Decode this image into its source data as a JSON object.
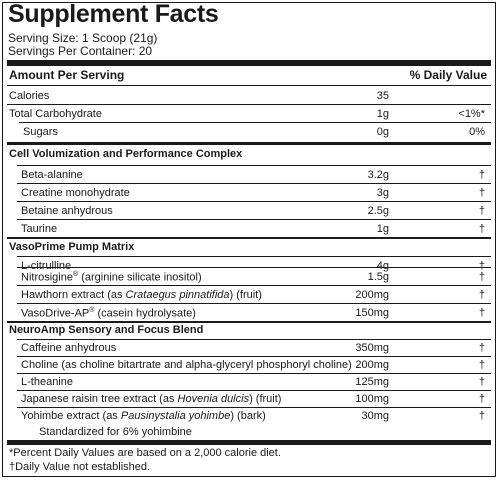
{
  "title": "Supplement Facts",
  "serving_size": "Serving Size: 1 Scoop (21g)",
  "servings_per_container": "Servings Per Container: 20",
  "header": {
    "amount_per_serving": "Amount Per Serving",
    "daily_value": "% Daily Value"
  },
  "basic": [
    {
      "name": "Calories",
      "amount": "35",
      "dv": ""
    },
    {
      "name": "Total Carbohydrate",
      "amount": "1g",
      "dv": "<1%*"
    },
    {
      "name": "Sugars",
      "amount": "0g",
      "dv": "0%"
    }
  ],
  "sections": [
    {
      "title": "Cell Volumization and Performance Complex",
      "items": [
        {
          "name": "Beta-alanine",
          "amount": "3.2g",
          "dv": "†"
        },
        {
          "name": "Creatine monohydrate",
          "amount": "3g",
          "dv": "†"
        },
        {
          "name": "Betaine anhydrous",
          "amount": "2.5g",
          "dv": "†"
        },
        {
          "name": "Taurine",
          "amount": "1g",
          "dv": "†"
        }
      ]
    },
    {
      "title": "VasoPrime Pump Matrix",
      "items": [
        {
          "name": "L-citrulline",
          "amount": "4g",
          "dv": "†"
        },
        {
          "name": "Nitrosigine",
          "reg": "®",
          "suffix": " (arginine silicate inositol)",
          "amount": "1.5g",
          "dv": "†"
        },
        {
          "name": "Hawthorn extract (as ",
          "italic": "Crataegus pinnatifida",
          "suffix": ") (fruit)",
          "amount": "200mg",
          "dv": "†"
        },
        {
          "name": "VasoDrive-AP",
          "reg": "®",
          "suffix": " (casein hydrolysate)",
          "amount": "150mg",
          "dv": "†"
        }
      ]
    },
    {
      "title": "NeuroAmp Sensory and Focus Blend",
      "items": [
        {
          "name": "Caffeine anhydrous",
          "amount": "350mg",
          "dv": "†"
        },
        {
          "name": "Choline (as choline bitartrate and alpha-glyceryl phosphoryl choline)",
          "amount": "200mg",
          "dv": "†"
        },
        {
          "name": "L-theanine",
          "amount": "125mg",
          "dv": "†"
        },
        {
          "name": "Japanese raisin tree extract (as ",
          "italic": "Hovenia dulcis",
          "suffix": ") (fruit)",
          "amount": "100mg",
          "dv": "†"
        },
        {
          "name": "Yohimbe extract (as ",
          "italic": "Pausinystalia yohimbe",
          "suffix": ") (bark)",
          "amount": "30mg",
          "dv": "†"
        }
      ],
      "note": "Standardized for 6% yohimbine"
    }
  ],
  "footnotes": [
    "*Percent Daily Values are based on a 2,000 calorie diet.",
    "†Daily Value not established."
  ]
}
